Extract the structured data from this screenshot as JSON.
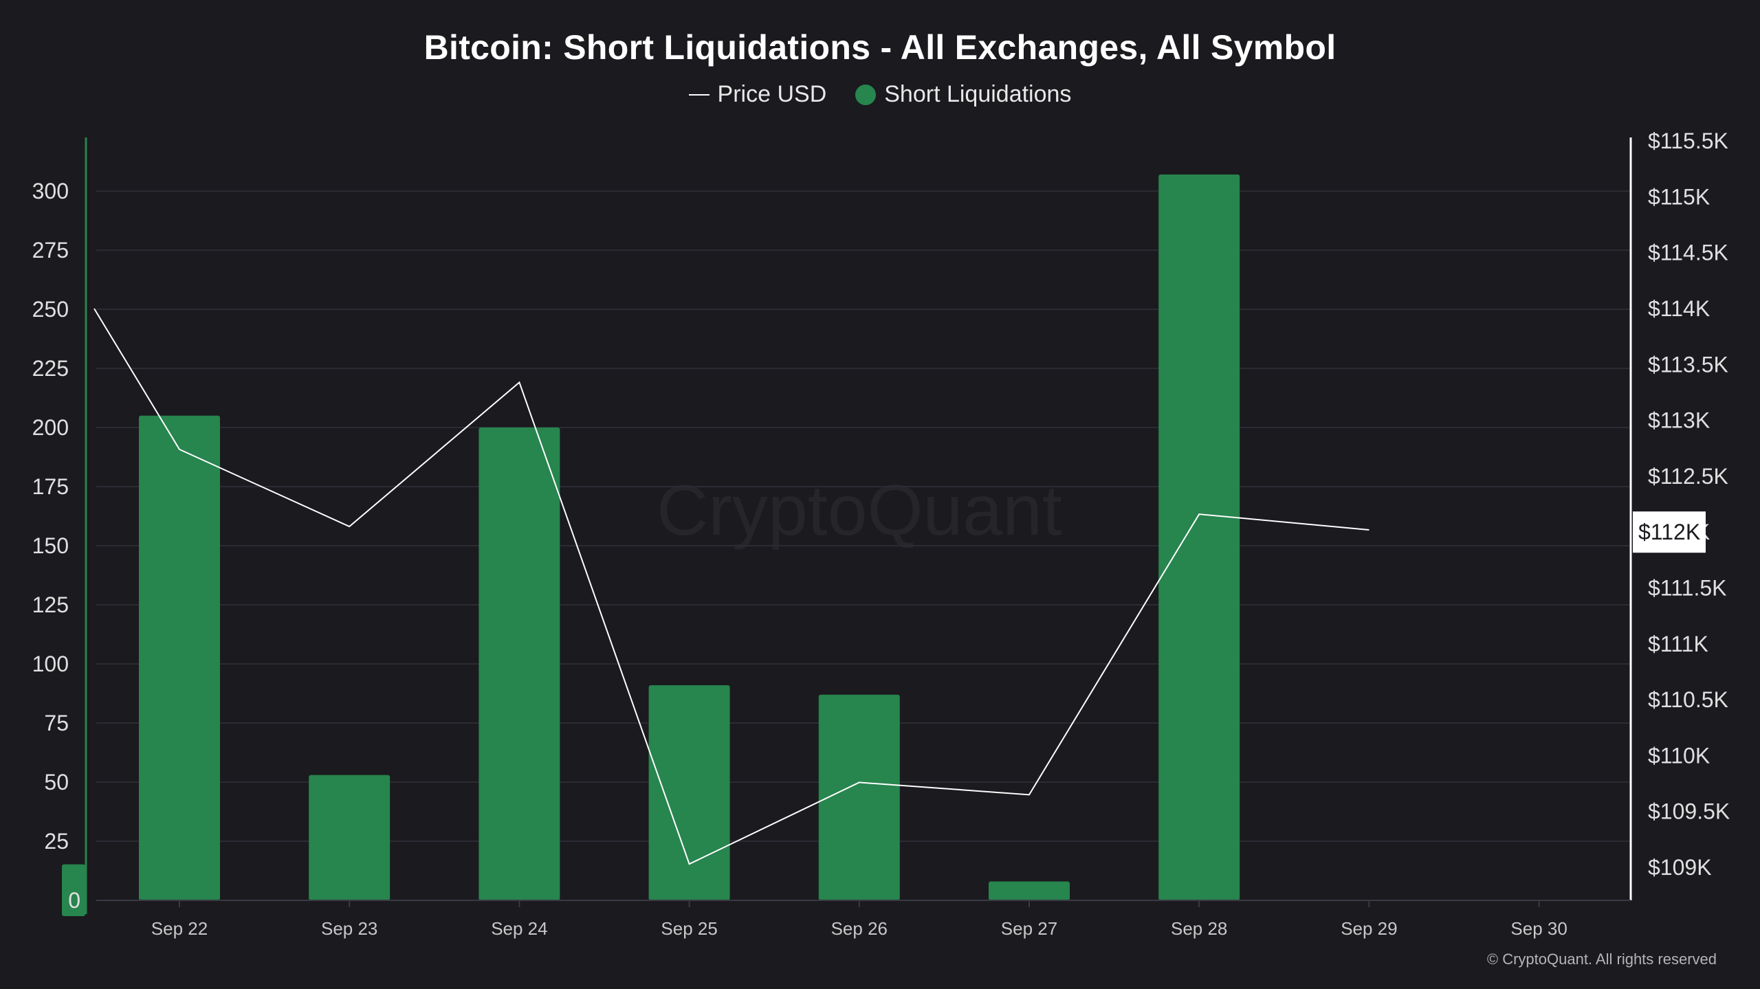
{
  "chart_data": {
    "type": "bar",
    "title": "Bitcoin: Short Liquidations - All Exchanges, All Symbol",
    "categories": [
      "Sep 22",
      "Sep 23",
      "Sep 24",
      "Sep 25",
      "Sep 26",
      "Sep 27",
      "Sep 28",
      "Sep 29",
      "Sep 30"
    ],
    "series": [
      {
        "name": "Price USD",
        "type": "line",
        "axis": "right",
        "x": [
          "Sep 21",
          "Sep 22",
          "Sep 23",
          "Sep 24",
          "Sep 25",
          "Sep 26",
          "Sep 27",
          "Sep 28",
          "Sep 29"
        ],
        "values": [
          114000,
          112740,
          112050,
          113340,
          109030,
          109760,
          109650,
          112160,
          112020
        ],
        "color": "#ffffff"
      },
      {
        "name": "Short Liquidations",
        "type": "bar",
        "axis": "left",
        "x": [
          "Sep 21",
          "Sep 22",
          "Sep 23",
          "Sep 24",
          "Sep 25",
          "Sep 26",
          "Sep 27",
          "Sep 28"
        ],
        "values": [
          10,
          205,
          53,
          200,
          91,
          87,
          8,
          307
        ],
        "color": "#27854e"
      }
    ],
    "y_left": {
      "ylim": [
        0,
        320
      ],
      "ticks": [
        "0",
        "25",
        "50",
        "75",
        "100",
        "125",
        "150",
        "175",
        "200",
        "225",
        "250",
        "275",
        "300"
      ]
    },
    "y_right": {
      "ylim": [
        108700,
        115550
      ],
      "ticks": [
        "$109K",
        "$109.5K",
        "$110K",
        "$110.5K",
        "$111K",
        "$111.5K",
        "$112K",
        "$112.5K",
        "$113K",
        "$113.5K",
        "$114K",
        "$114.5K",
        "$115K",
        "$115.5K"
      ],
      "current_price_label": "$112K"
    },
    "legend_position": "top-center",
    "grid": true,
    "watermark": "CryptoQuant",
    "copyright": "© CryptoQuant. All rights reserved"
  }
}
